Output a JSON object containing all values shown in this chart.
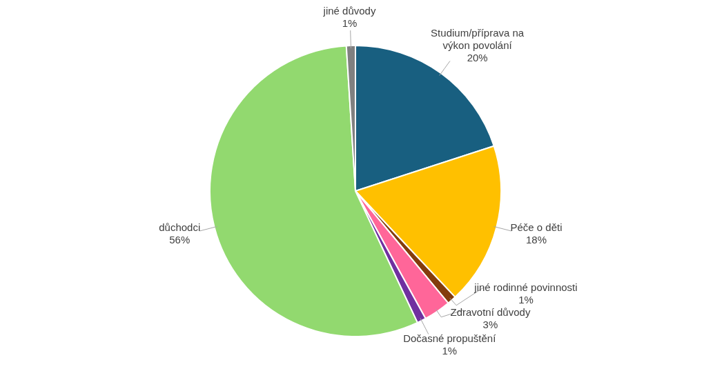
{
  "chart_data": {
    "type": "pie",
    "categories": [
      "Studium/příprava na výkon povolání",
      "Péče o děti",
      "jiné rodinné povinnosti",
      "Zdravotní důvody",
      "Dočasné propuštění",
      "důchodci",
      "jiné důvody"
    ],
    "values": [
      20,
      18,
      1,
      3,
      1,
      56,
      1
    ],
    "colors": [
      "#185f80",
      "#ffc000",
      "#843c0c",
      "#ff6699",
      "#7030a0",
      "#92d96f",
      "#808080"
    ],
    "value_labels": [
      "20%",
      "18%",
      "1%",
      "3%",
      "1%",
      "56%",
      "1%"
    ],
    "legend": false
  }
}
